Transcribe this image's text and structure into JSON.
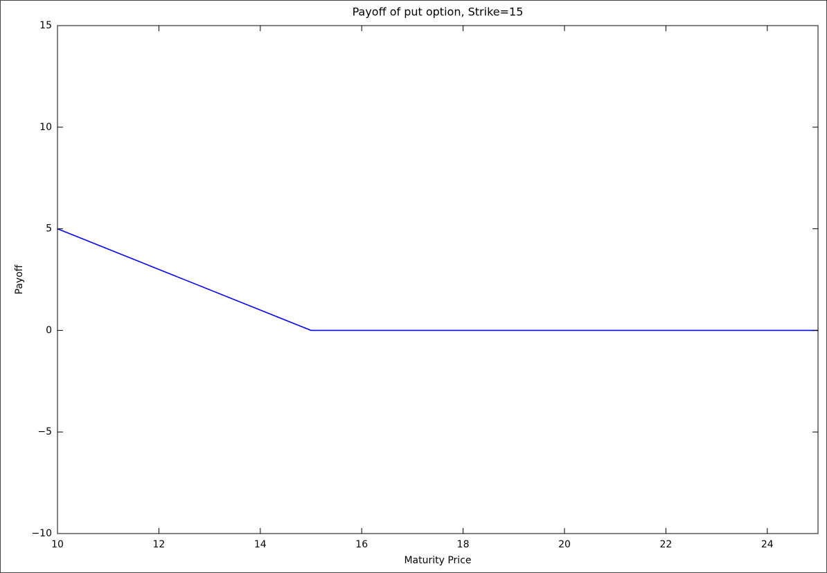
{
  "chart_data": {
    "type": "line",
    "title": "Payoff of put option, Strike=15",
    "xlabel": "Maturity Price",
    "ylabel": "Payoff",
    "x": [
      10,
      15,
      25
    ],
    "values": [
      5,
      0,
      0
    ],
    "color": "#0000ff",
    "xlim": [
      10,
      25
    ],
    "xticks": [
      10,
      12,
      14,
      16,
      18,
      20,
      22,
      24
    ],
    "ylim": [
      -10,
      15
    ],
    "yticks": [
      {
        "value": -10,
        "label": "−10"
      },
      {
        "value": -5,
        "label": "−5"
      },
      0,
      5,
      10,
      15
    ]
  }
}
